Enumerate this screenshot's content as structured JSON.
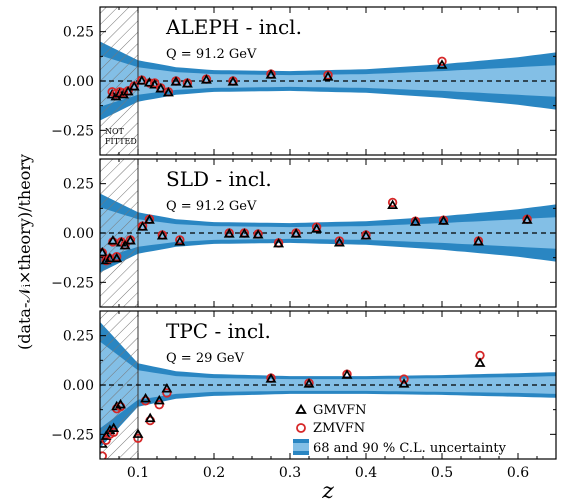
{
  "chart_data": {
    "type": "scatter",
    "ylabel": "(data-𝒩ᵢ×theory)/theory",
    "xlabel": "z",
    "xlim": [
      0.05,
      0.65
    ],
    "ylim": [
      -0.375,
      0.375
    ],
    "x_ticks": [
      "0.1",
      "0.2",
      "0.3",
      "0.4",
      "0.5",
      "0.6"
    ],
    "y_ticks": [
      "0.25",
      "0.00",
      "−0.25"
    ],
    "not_fitted_label": [
      "NOT",
      "FITTED"
    ],
    "not_fitted_cut": 0.1,
    "colors": {
      "band68": "#83bfe6",
      "band90": "#2a86c2",
      "gm": "#000000",
      "zm": "#d62728"
    },
    "legend": [
      {
        "name": "GMVFN",
        "marker": "triangle",
        "color": "#000000"
      },
      {
        "name": "ZMVFN",
        "marker": "circle",
        "color": "#d62728"
      },
      {
        "name": "68 and 90 % C.L. uncertainty",
        "marker": "band"
      }
    ],
    "panels": [
      {
        "title": "ALEPH - incl.",
        "subtitle": "Q = 91.2 GeV",
        "band": {
          "x": [
            0.05,
            0.1,
            0.15,
            0.2,
            0.3,
            0.4,
            0.5,
            0.6,
            0.65
          ],
          "inner": [
            0.13,
            0.07,
            0.045,
            0.035,
            0.03,
            0.035,
            0.05,
            0.07,
            0.08
          ],
          "outer": [
            0.2,
            0.105,
            0.07,
            0.055,
            0.05,
            0.06,
            0.085,
            0.12,
            0.145
          ]
        },
        "points": [
          {
            "x": 0.066,
            "gm": -0.07,
            "zm": -0.055
          },
          {
            "x": 0.071,
            "gm": -0.08,
            "zm": -0.065
          },
          {
            "x": 0.076,
            "gm": -0.065,
            "zm": -0.055
          },
          {
            "x": 0.081,
            "gm": -0.07,
            "zm": -0.06
          },
          {
            "x": 0.087,
            "gm": -0.055,
            "zm": -0.05
          },
          {
            "x": 0.095,
            "gm": -0.03,
            "zm": -0.025
          },
          {
            "x": 0.105,
            "gm": 0.0,
            "zm": 0.005
          },
          {
            "x": 0.115,
            "gm": -0.01,
            "zm": -0.01
          },
          {
            "x": 0.122,
            "gm": -0.02,
            "zm": -0.01
          },
          {
            "x": 0.13,
            "gm": -0.04,
            "zm": -0.035
          },
          {
            "x": 0.14,
            "gm": -0.06,
            "zm": -0.055
          },
          {
            "x": 0.15,
            "gm": -0.005,
            "zm": 0.0
          },
          {
            "x": 0.165,
            "gm": -0.015,
            "zm": -0.01
          },
          {
            "x": 0.19,
            "gm": 0.005,
            "zm": 0.01
          },
          {
            "x": 0.225,
            "gm": -0.005,
            "zm": 0.0
          },
          {
            "x": 0.275,
            "gm": 0.03,
            "zm": 0.035
          },
          {
            "x": 0.35,
            "gm": 0.02,
            "zm": 0.03
          },
          {
            "x": 0.5,
            "gm": 0.08,
            "zm": 0.1
          }
        ]
      },
      {
        "title": "SLD - incl.",
        "subtitle": "Q = 91.2 GeV",
        "band": {
          "x": [
            0.05,
            0.1,
            0.15,
            0.2,
            0.3,
            0.4,
            0.5,
            0.6,
            0.65
          ],
          "inner": [
            0.13,
            0.07,
            0.045,
            0.035,
            0.03,
            0.035,
            0.05,
            0.07,
            0.08
          ],
          "outer": [
            0.2,
            0.105,
            0.07,
            0.055,
            0.05,
            0.06,
            0.085,
            0.12,
            0.145
          ]
        },
        "points": [
          {
            "x": 0.053,
            "gm": -0.1,
            "zm": -0.1
          },
          {
            "x": 0.058,
            "gm": -0.14,
            "zm": -0.14
          },
          {
            "x": 0.063,
            "gm": -0.13,
            "zm": -0.13
          },
          {
            "x": 0.067,
            "gm": -0.04,
            "zm": -0.045
          },
          {
            "x": 0.072,
            "gm": -0.13,
            "zm": -0.12
          },
          {
            "x": 0.078,
            "gm": -0.05,
            "zm": -0.045
          },
          {
            "x": 0.083,
            "gm": -0.065,
            "zm": -0.06
          },
          {
            "x": 0.09,
            "gm": -0.04,
            "zm": -0.035
          },
          {
            "x": 0.106,
            "gm": 0.03,
            "zm": 0.035
          },
          {
            "x": 0.115,
            "gm": 0.065,
            "zm": 0.07
          },
          {
            "x": 0.132,
            "gm": -0.015,
            "zm": -0.01
          },
          {
            "x": 0.155,
            "gm": -0.045,
            "zm": -0.035
          },
          {
            "x": 0.22,
            "gm": -0.005,
            "zm": 0.0
          },
          {
            "x": 0.24,
            "gm": -0.005,
            "zm": 0.0
          },
          {
            "x": 0.258,
            "gm": -0.01,
            "zm": -0.005
          },
          {
            "x": 0.285,
            "gm": -0.055,
            "zm": -0.05
          },
          {
            "x": 0.308,
            "gm": -0.005,
            "zm": 0.0
          },
          {
            "x": 0.335,
            "gm": 0.02,
            "zm": 0.03
          },
          {
            "x": 0.365,
            "gm": -0.05,
            "zm": -0.04
          },
          {
            "x": 0.4,
            "gm": -0.015,
            "zm": -0.01
          },
          {
            "x": 0.435,
            "gm": 0.14,
            "zm": 0.155
          },
          {
            "x": 0.465,
            "gm": 0.055,
            "zm": 0.06
          },
          {
            "x": 0.502,
            "gm": 0.06,
            "zm": 0.065
          },
          {
            "x": 0.548,
            "gm": -0.045,
            "zm": -0.04
          },
          {
            "x": 0.612,
            "gm": 0.065,
            "zm": 0.07
          }
        ]
      },
      {
        "title": "TPC - incl.",
        "subtitle": "Q = 29 GeV",
        "band": {
          "x": [
            0.05,
            0.1,
            0.15,
            0.2,
            0.3,
            0.4,
            0.5,
            0.6,
            0.65
          ],
          "inner": [
            0.22,
            0.075,
            0.045,
            0.035,
            0.03,
            0.03,
            0.035,
            0.04,
            0.045
          ],
          "outer": [
            0.32,
            0.11,
            0.07,
            0.055,
            0.045,
            0.045,
            0.05,
            0.06,
            0.065
          ]
        },
        "points": [
          {
            "x": 0.053,
            "gm": -0.3,
            "zm": -0.36
          },
          {
            "x": 0.058,
            "gm": -0.26,
            "zm": -0.28
          },
          {
            "x": 0.063,
            "gm": -0.23,
            "zm": -0.25
          },
          {
            "x": 0.068,
            "gm": -0.22,
            "zm": -0.24
          },
          {
            "x": 0.072,
            "gm": -0.11,
            "zm": -0.12
          },
          {
            "x": 0.077,
            "gm": -0.1,
            "zm": -0.11
          },
          {
            "x": 0.1,
            "gm": -0.25,
            "zm": -0.27
          },
          {
            "x": 0.11,
            "gm": -0.07,
            "zm": -0.08
          },
          {
            "x": 0.116,
            "gm": -0.17,
            "zm": -0.18
          },
          {
            "x": 0.128,
            "gm": -0.08,
            "zm": -0.1
          },
          {
            "x": 0.138,
            "gm": -0.02,
            "zm": -0.04
          },
          {
            "x": 0.275,
            "gm": 0.03,
            "zm": 0.035
          },
          {
            "x": 0.325,
            "gm": 0.005,
            "zm": 0.01
          },
          {
            "x": 0.375,
            "gm": 0.05,
            "zm": 0.055
          },
          {
            "x": 0.45,
            "gm": 0.005,
            "zm": 0.03
          },
          {
            "x": 0.55,
            "gm": 0.11,
            "zm": 0.15
          }
        ]
      }
    ]
  }
}
